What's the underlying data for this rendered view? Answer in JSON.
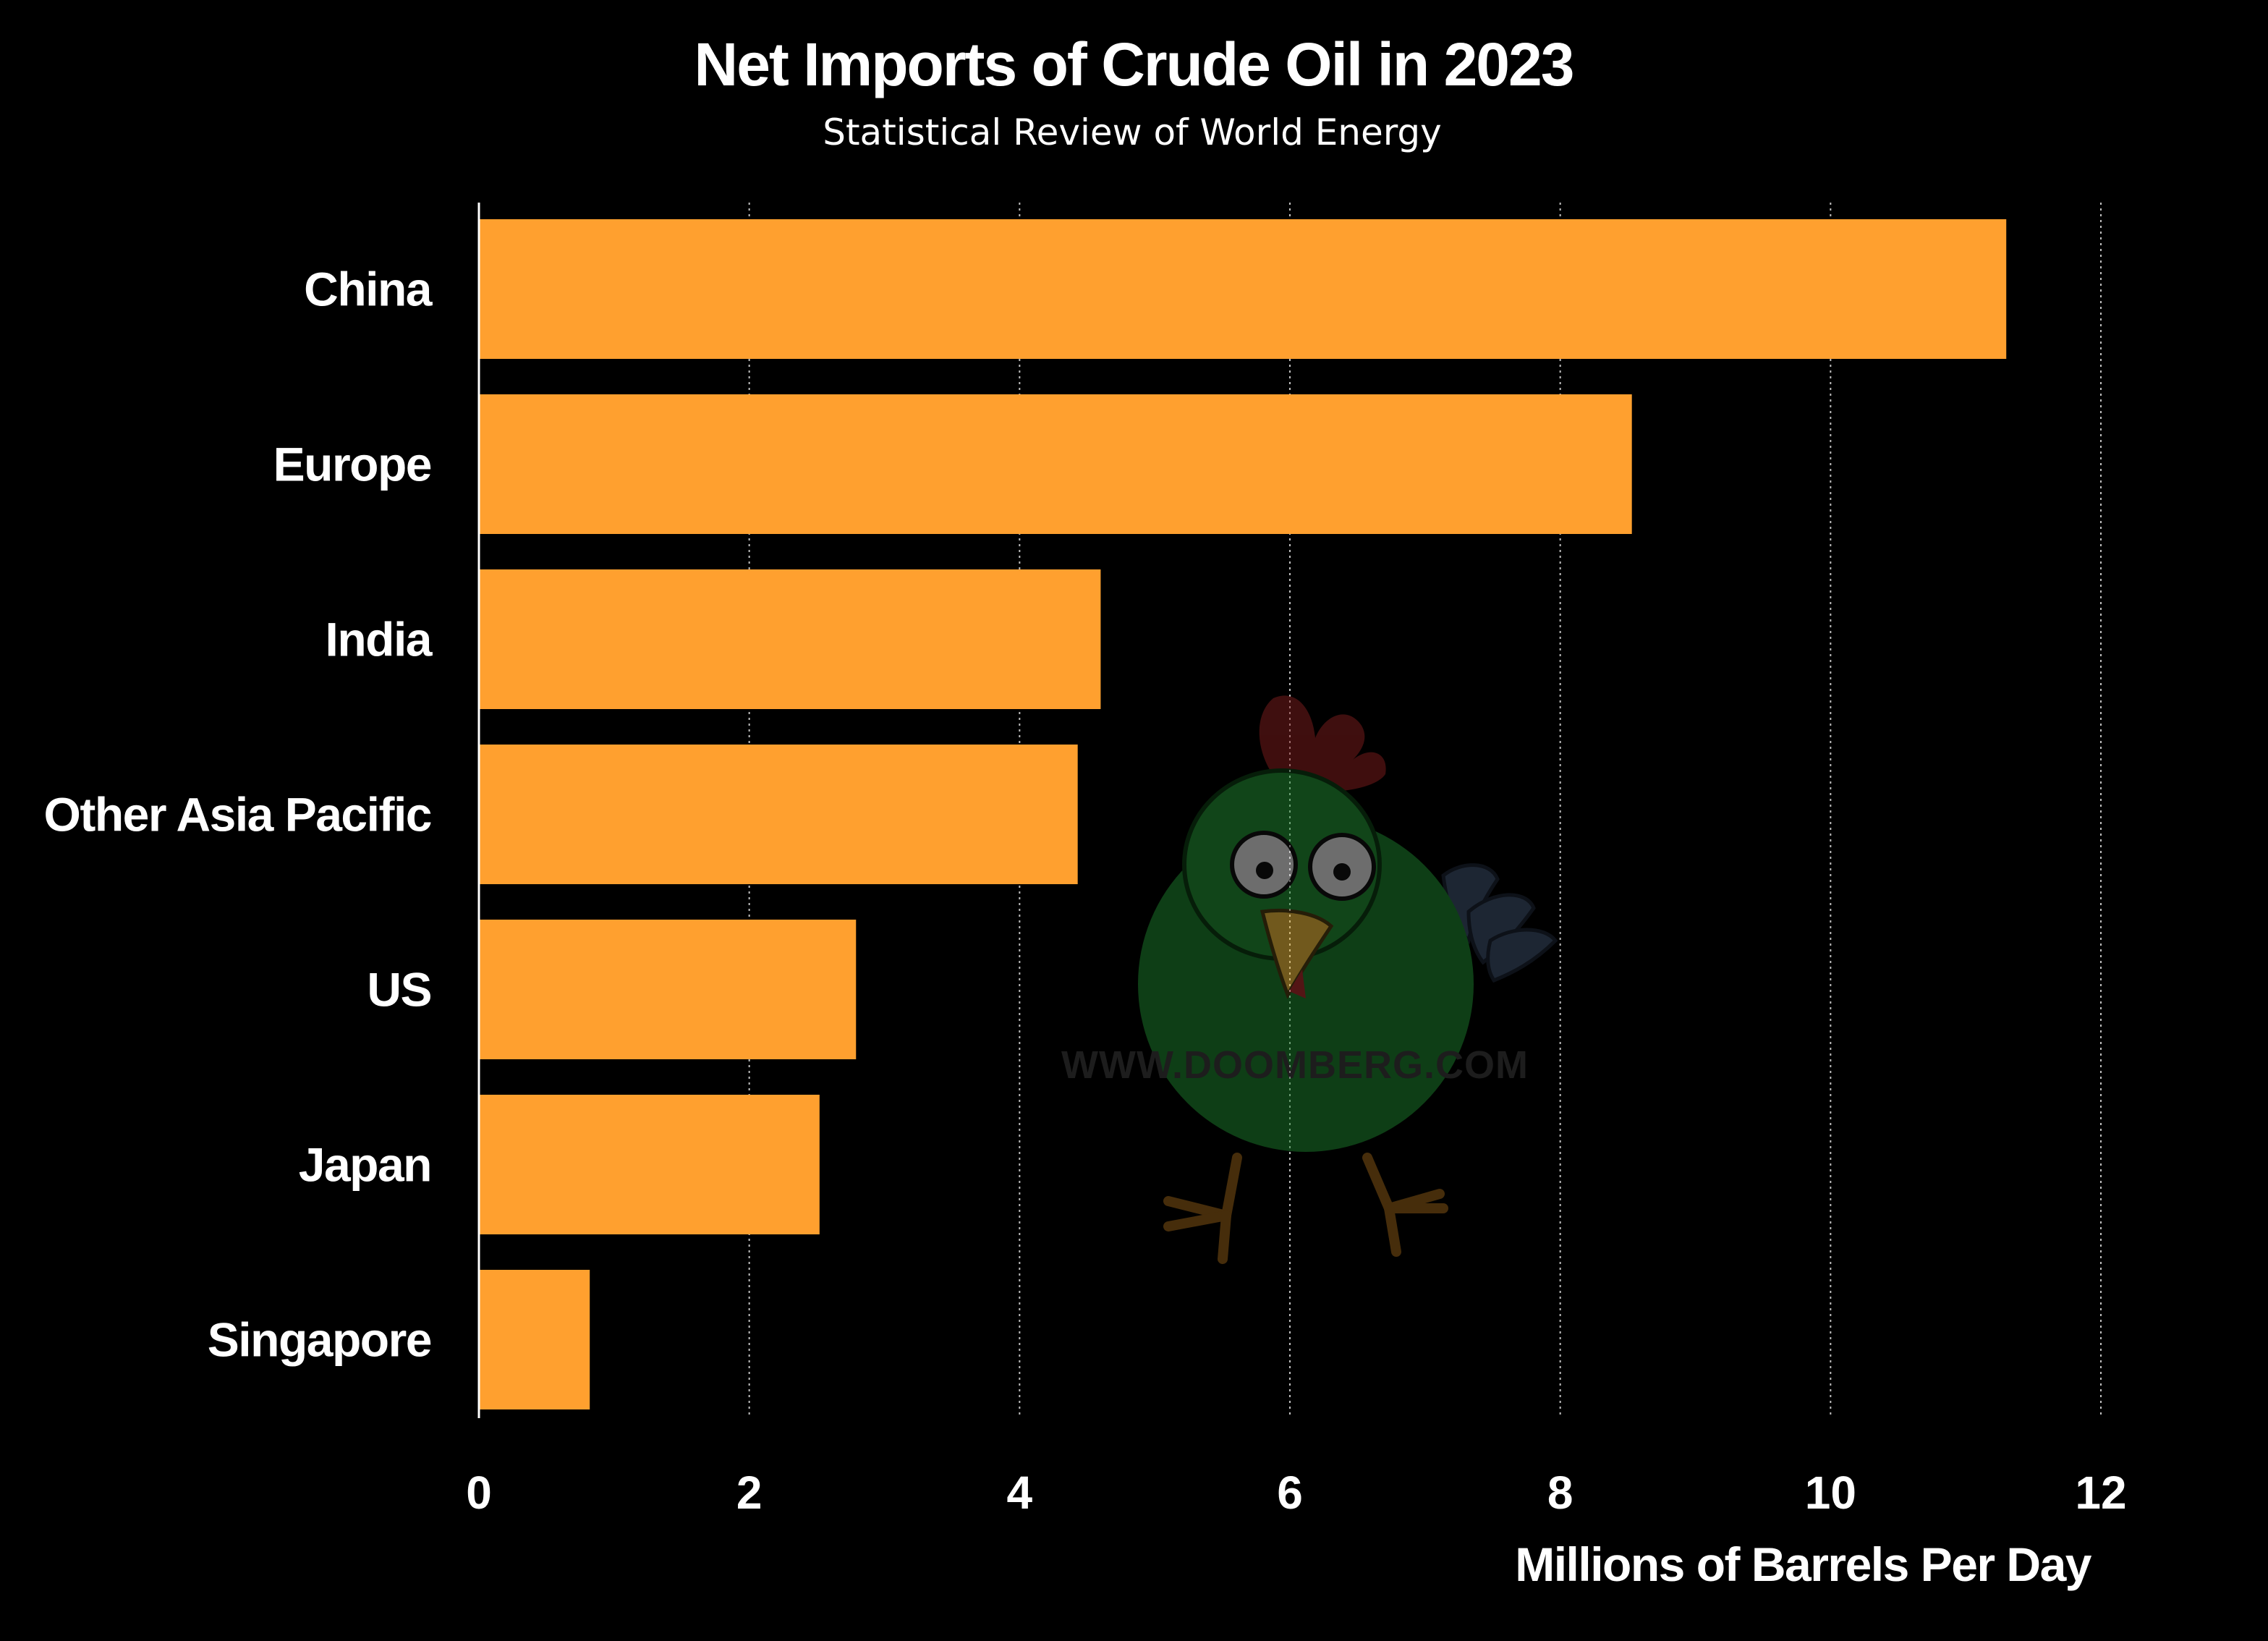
{
  "chart_data": {
    "type": "bar",
    "orientation": "horizontal",
    "title": "Net Imports of Crude Oil in 2023",
    "subtitle": "Statistical Review of World Energy",
    "xlabel": "Millions of Barrels Per Day",
    "ylabel": "",
    "categories": [
      "China",
      "Europe",
      "India",
      "Other Asia Pacific",
      "US",
      "Japan",
      "Singapore"
    ],
    "values": [
      11.3,
      8.53,
      4.6,
      4.43,
      2.79,
      2.52,
      0.82
    ],
    "xlim": [
      0,
      12
    ],
    "ticks": [
      0,
      2,
      4,
      6,
      8,
      10,
      12
    ],
    "tick_labels": [
      "0",
      "2",
      "4",
      "6",
      "8",
      "10",
      "12"
    ],
    "grid": "vertical",
    "bar_color": "#ffa02f",
    "background_color": "#000000",
    "text_color": "#ffffff",
    "grid_color": "#ffffff"
  },
  "watermark": {
    "text": "WWW.DOOMBERG.COM",
    "icon": "chicken-mascot-icon"
  }
}
